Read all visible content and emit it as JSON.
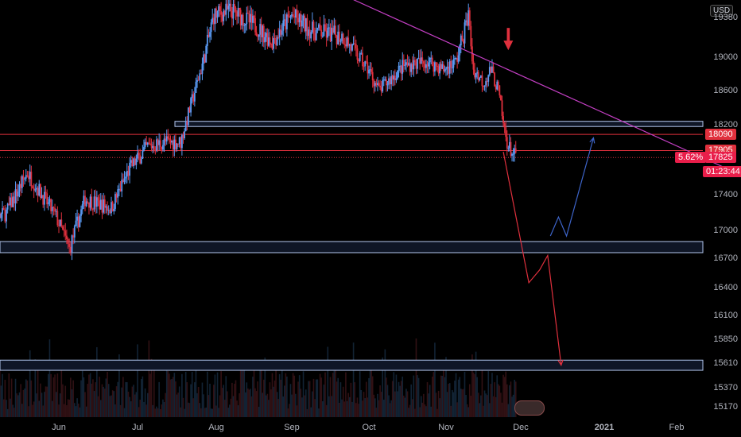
{
  "currency": "USD",
  "colors": {
    "background": "#000000",
    "up": "#5b9cf6",
    "down": "#e0303d",
    "trendline": "#c43fc4",
    "zone_fill": "#0f1626",
    "zone_border": "#b4c8f0",
    "resistance_line": "#e0303d",
    "arrow_down": "#e0303d",
    "arrow_up": "#3d64c9",
    "price_tag": "#e91e4a"
  },
  "price_labels": {
    "resistance_1": "18090",
    "resistance_2": "17905",
    "last_change": "5.62%",
    "last_price": "17825",
    "countdown": "01:23:44"
  },
  "chart_data": {
    "type": "candlestick",
    "title": "",
    "xlabel": "",
    "ylabel": "",
    "y_axis_ticks": [
      19380,
      19000,
      18600,
      18200,
      17400,
      17000,
      16700,
      16400,
      16100,
      15850,
      15610,
      15370,
      15170
    ],
    "y_axis_tick_labels": [
      "19380",
      "19000",
      "18600",
      "18200",
      "17400",
      "17000",
      "16700",
      "16400",
      "16100",
      "15850",
      "15610",
      "15370",
      "15170"
    ],
    "x_axis_ticks": [
      "Jun",
      "Jul",
      "Aug",
      "Sep",
      "Oct",
      "Nov",
      "Dec",
      "2021",
      "Feb"
    ],
    "ylim": [
      15060,
      19550
    ],
    "grid": false,
    "price_path": [
      {
        "date": "2020-05-01",
        "price": 17000
      },
      {
        "date": "2020-05-12",
        "price": 17200
      },
      {
        "date": "2020-05-20",
        "price": 17650
      },
      {
        "date": "2020-05-31",
        "price": 17150
      },
      {
        "date": "2020-06-05",
        "price": 16800
      },
      {
        "date": "2020-06-11",
        "price": 17350
      },
      {
        "date": "2020-06-21",
        "price": 17250
      },
      {
        "date": "2020-06-28",
        "price": 17700
      },
      {
        "date": "2020-07-05",
        "price": 17950
      },
      {
        "date": "2020-07-12",
        "price": 18000
      },
      {
        "date": "2020-07-18",
        "price": 18000
      },
      {
        "date": "2020-07-25",
        "price": 18750
      },
      {
        "date": "2020-07-31",
        "price": 19400
      },
      {
        "date": "2020-08-07",
        "price": 19450
      },
      {
        "date": "2020-08-17",
        "price": 19300
      },
      {
        "date": "2020-08-24",
        "price": 19150
      },
      {
        "date": "2020-09-01",
        "price": 19400
      },
      {
        "date": "2020-09-09",
        "price": 19250
      },
      {
        "date": "2020-09-21",
        "price": 19200
      },
      {
        "date": "2020-10-01",
        "price": 18850
      },
      {
        "date": "2020-10-05",
        "price": 18600
      },
      {
        "date": "2020-10-15",
        "price": 18900
      },
      {
        "date": "2020-10-25",
        "price": 18950
      },
      {
        "date": "2020-10-31",
        "price": 18850
      },
      {
        "date": "2020-11-05",
        "price": 18950
      },
      {
        "date": "2020-11-10",
        "price": 19400
      },
      {
        "date": "2020-11-12",
        "price": 18850
      },
      {
        "date": "2020-11-16",
        "price": 18700
      },
      {
        "date": "2020-11-19",
        "price": 18850
      },
      {
        "date": "2020-11-22",
        "price": 18600
      },
      {
        "date": "2020-11-24",
        "price": 18200
      },
      {
        "date": "2020-11-26",
        "price": 17950
      },
      {
        "date": "2020-11-29",
        "price": 17825
      }
    ],
    "zones": [
      {
        "top": 18240,
        "bottom": 18180
      },
      {
        "top": 16880,
        "bottom": 16760
      },
      {
        "top": 15640,
        "bottom": 15540
      }
    ],
    "horizontal_lines": [
      {
        "price": 18090,
        "label": "18090"
      },
      {
        "price": 17905,
        "label": "17905"
      }
    ],
    "last_price_line": 17825,
    "trendline": [
      {
        "date": "2020-09-25",
        "price": 19550
      },
      {
        "date": "2021-03-01",
        "price": 17620
      }
    ],
    "projection_down": [
      {
        "date": "2020-11-24",
        "price": 17890
      },
      {
        "date": "2020-12-04",
        "price": 16450
      },
      {
        "date": "2020-12-08",
        "price": 16580
      },
      {
        "date": "2020-12-11",
        "price": 16730
      },
      {
        "date": "2020-12-16",
        "price": 15590
      }
    ],
    "projection_up": [
      {
        "date": "2020-12-12",
        "price": 16940
      },
      {
        "date": "2020-12-15",
        "price": 17150
      },
      {
        "date": "2020-12-18",
        "price": 16940
      },
      {
        "date": "2020-12-28",
        "price": 18050
      }
    ],
    "signal_arrow": {
      "date": "2020-11-26",
      "price": 19280
    }
  }
}
